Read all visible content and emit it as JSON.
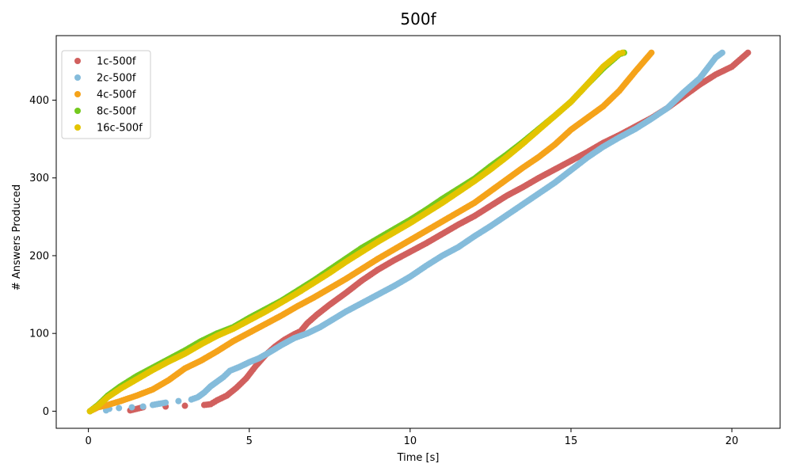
{
  "chart_data": {
    "type": "scatter",
    "title": "500f",
    "xlabel": "Time [s]",
    "ylabel": "# Answers Produced",
    "xlim": [
      -1.0,
      21.5
    ],
    "ylim": [
      -22,
      483
    ],
    "xticks": [
      0,
      5,
      10,
      15,
      20
    ],
    "yticks": [
      0,
      100,
      200,
      300,
      400
    ],
    "legend_position": "top-left",
    "grid": false,
    "series": [
      {
        "name": "1c-500f",
        "color": "#d1605e",
        "points": [
          [
            1.3,
            1
          ],
          [
            1.7,
            5
          ],
          [
            2.4,
            6
          ],
          [
            3.0,
            7
          ],
          [
            3.6,
            8
          ],
          [
            3.8,
            9
          ],
          [
            4.0,
            14
          ],
          [
            4.3,
            20
          ],
          [
            4.6,
            30
          ],
          [
            4.9,
            42
          ],
          [
            5.2,
            58
          ],
          [
            5.5,
            72
          ],
          [
            5.8,
            83
          ],
          [
            6.1,
            92
          ],
          [
            6.4,
            99
          ],
          [
            6.6,
            103
          ],
          [
            6.8,
            113
          ],
          [
            7.1,
            124
          ],
          [
            7.5,
            137
          ],
          [
            8.0,
            152
          ],
          [
            8.5,
            168
          ],
          [
            9.0,
            182
          ],
          [
            9.5,
            194
          ],
          [
            10.0,
            205
          ],
          [
            10.5,
            216
          ],
          [
            11.0,
            228
          ],
          [
            11.5,
            240
          ],
          [
            12.0,
            251
          ],
          [
            12.5,
            264
          ],
          [
            13.0,
            277
          ],
          [
            13.5,
            288
          ],
          [
            14.0,
            300
          ],
          [
            14.5,
            311
          ],
          [
            15.0,
            322
          ],
          [
            15.5,
            333
          ],
          [
            16.0,
            345
          ],
          [
            16.5,
            355
          ],
          [
            17.0,
            366
          ],
          [
            17.5,
            377
          ],
          [
            18.0,
            390
          ],
          [
            18.5,
            405
          ],
          [
            19.0,
            420
          ],
          [
            19.5,
            433
          ],
          [
            20.0,
            443
          ],
          [
            20.5,
            461
          ]
        ]
      },
      {
        "name": "2c-500f",
        "color": "#85bcdb",
        "points": [
          [
            0.55,
            1
          ],
          [
            0.65,
            3
          ],
          [
            0.95,
            4
          ],
          [
            1.35,
            5
          ],
          [
            1.7,
            6
          ],
          [
            2.0,
            8
          ],
          [
            2.4,
            11
          ],
          [
            2.8,
            13
          ],
          [
            3.2,
            15
          ],
          [
            3.4,
            18
          ],
          [
            3.6,
            24
          ],
          [
            3.8,
            32
          ],
          [
            4.0,
            38
          ],
          [
            4.2,
            44
          ],
          [
            4.4,
            52
          ],
          [
            4.7,
            57
          ],
          [
            5.0,
            63
          ],
          [
            5.3,
            68
          ],
          [
            5.6,
            75
          ],
          [
            6.0,
            85
          ],
          [
            6.4,
            94
          ],
          [
            6.8,
            100
          ],
          [
            7.2,
            108
          ],
          [
            7.6,
            118
          ],
          [
            8.0,
            128
          ],
          [
            8.5,
            139
          ],
          [
            9.0,
            150
          ],
          [
            9.5,
            161
          ],
          [
            10.0,
            173
          ],
          [
            10.5,
            187
          ],
          [
            11.0,
            200
          ],
          [
            11.5,
            211
          ],
          [
            12.0,
            225
          ],
          [
            12.5,
            238
          ],
          [
            13.0,
            252
          ],
          [
            13.5,
            266
          ],
          [
            14.0,
            280
          ],
          [
            14.5,
            294
          ],
          [
            15.0,
            310
          ],
          [
            15.5,
            326
          ],
          [
            16.0,
            340
          ],
          [
            16.5,
            352
          ],
          [
            17.0,
            363
          ],
          [
            17.5,
            376
          ],
          [
            18.0,
            390
          ],
          [
            18.5,
            410
          ],
          [
            19.0,
            428
          ],
          [
            19.5,
            455
          ],
          [
            19.7,
            461
          ]
        ]
      },
      {
        "name": "4c-500f",
        "color": "#f5a31a",
        "points": [
          [
            0.05,
            0
          ],
          [
            0.3,
            5
          ],
          [
            0.6,
            8
          ],
          [
            1.0,
            13
          ],
          [
            1.5,
            20
          ],
          [
            2.0,
            28
          ],
          [
            2.5,
            40
          ],
          [
            3.0,
            55
          ],
          [
            3.5,
            65
          ],
          [
            4.0,
            77
          ],
          [
            4.5,
            90
          ],
          [
            5.0,
            101
          ],
          [
            5.5,
            112
          ],
          [
            6.0,
            123
          ],
          [
            6.5,
            135
          ],
          [
            7.0,
            146
          ],
          [
            7.5,
            158
          ],
          [
            8.0,
            170
          ],
          [
            8.5,
            183
          ],
          [
            9.0,
            196
          ],
          [
            9.5,
            208
          ],
          [
            10.0,
            220
          ],
          [
            10.5,
            232
          ],
          [
            11.0,
            244
          ],
          [
            11.5,
            256
          ],
          [
            12.0,
            268
          ],
          [
            12.5,
            283
          ],
          [
            13.0,
            298
          ],
          [
            13.5,
            313
          ],
          [
            14.0,
            327
          ],
          [
            14.5,
            343
          ],
          [
            15.0,
            362
          ],
          [
            15.5,
            377
          ],
          [
            16.0,
            392
          ],
          [
            16.5,
            412
          ],
          [
            17.0,
            437
          ],
          [
            17.5,
            461
          ]
        ]
      },
      {
        "name": "8c-500f",
        "color": "#74c91e",
        "points": [
          [
            0.05,
            0
          ],
          [
            0.3,
            8
          ],
          [
            0.6,
            20
          ],
          [
            1.0,
            32
          ],
          [
            1.5,
            45
          ],
          [
            2.0,
            56
          ],
          [
            2.5,
            67
          ],
          [
            3.0,
            78
          ],
          [
            3.5,
            90
          ],
          [
            4.0,
            100
          ],
          [
            4.5,
            108
          ],
          [
            5.0,
            120
          ],
          [
            5.5,
            131
          ],
          [
            6.0,
            142
          ],
          [
            6.5,
            155
          ],
          [
            7.0,
            168
          ],
          [
            7.5,
            182
          ],
          [
            8.0,
            196
          ],
          [
            8.5,
            210
          ],
          [
            9.0,
            222
          ],
          [
            9.5,
            234
          ],
          [
            10.0,
            246
          ],
          [
            10.5,
            259
          ],
          [
            11.0,
            273
          ],
          [
            11.5,
            286
          ],
          [
            12.0,
            299
          ],
          [
            12.5,
            315
          ],
          [
            13.0,
            330
          ],
          [
            13.5,
            346
          ],
          [
            14.0,
            363
          ],
          [
            14.5,
            380
          ],
          [
            15.0,
            398
          ],
          [
            15.5,
            420
          ],
          [
            16.0,
            441
          ],
          [
            16.5,
            459
          ],
          [
            16.65,
            461
          ]
        ]
      },
      {
        "name": "16c-500f",
        "color": "#e3c400",
        "points": [
          [
            0.05,
            0
          ],
          [
            0.3,
            7
          ],
          [
            0.6,
            18
          ],
          [
            1.0,
            29
          ],
          [
            1.5,
            41
          ],
          [
            2.0,
            53
          ],
          [
            2.5,
            64
          ],
          [
            3.0,
            74
          ],
          [
            3.5,
            86
          ],
          [
            4.0,
            97
          ],
          [
            4.5,
            106
          ],
          [
            5.0,
            117
          ],
          [
            5.5,
            128
          ],
          [
            6.0,
            140
          ],
          [
            6.5,
            152
          ],
          [
            7.0,
            165
          ],
          [
            7.5,
            178
          ],
          [
            8.0,
            192
          ],
          [
            8.5,
            205
          ],
          [
            9.0,
            218
          ],
          [
            9.5,
            230
          ],
          [
            10.0,
            242
          ],
          [
            10.5,
            255
          ],
          [
            11.0,
            268
          ],
          [
            11.5,
            282
          ],
          [
            12.0,
            296
          ],
          [
            12.5,
            311
          ],
          [
            13.0,
            327
          ],
          [
            13.5,
            344
          ],
          [
            14.0,
            362
          ],
          [
            14.5,
            380
          ],
          [
            15.0,
            398
          ],
          [
            15.5,
            420
          ],
          [
            16.0,
            443
          ],
          [
            16.5,
            460
          ],
          [
            16.6,
            461
          ]
        ]
      }
    ]
  }
}
